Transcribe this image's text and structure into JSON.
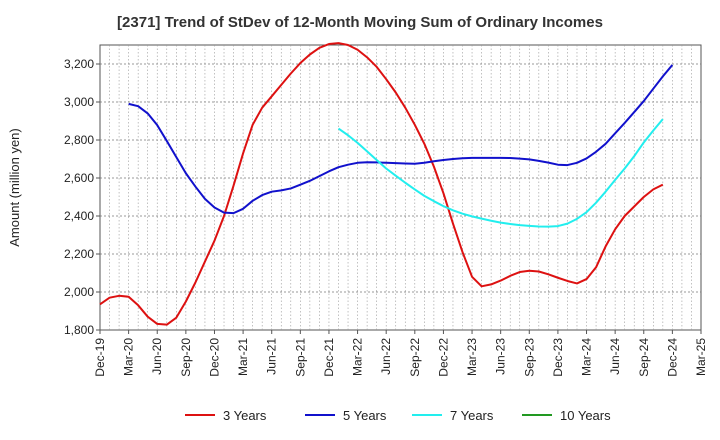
{
  "chart_data": {
    "type": "line",
    "title": "[2371]  Trend of StDev of 12-Month Moving Sum of Ordinary Incomes",
    "ylabel": "Amount (million yen)",
    "xlabel": "",
    "x_start": "Dec-19",
    "months_per_point": 1,
    "ylim": [
      1800,
      3300
    ],
    "yticks": [
      1800,
      2000,
      2200,
      2400,
      2600,
      2800,
      3000,
      3200
    ],
    "ytick_labels": [
      "1,800",
      "2,000",
      "2,200",
      "2,400",
      "2,600",
      "2,800",
      "3,000",
      "3,200"
    ],
    "xtick_labels": [
      "Dec-19",
      "Mar-20",
      "Jun-20",
      "Sep-20",
      "Dec-20",
      "Mar-21",
      "Jun-21",
      "Sep-21",
      "Dec-21",
      "Mar-22",
      "Jun-22",
      "Sep-22",
      "Dec-22",
      "Mar-23",
      "Jun-23",
      "Sep-23",
      "Dec-23",
      "Mar-24",
      "Jun-24",
      "Sep-24",
      "Dec-24",
      "Mar-25"
    ],
    "grid": true,
    "legend_position": "bottom",
    "series": [
      {
        "name": "3 Years",
        "color": "#dd1111",
        "start": "Dec-19",
        "values": [
          1935,
          1970,
          1980,
          1975,
          1930,
          1870,
          1832,
          1828,
          1865,
          1950,
          2050,
          2160,
          2270,
          2400,
          2560,
          2730,
          2880,
          2970,
          3030,
          3090,
          3150,
          3205,
          3250,
          3285,
          3305,
          3310,
          3300,
          3275,
          3235,
          3185,
          3120,
          3050,
          2970,
          2880,
          2780,
          2660,
          2520,
          2360,
          2210,
          2080,
          2030,
          2040,
          2060,
          2085,
          2105,
          2112,
          2108,
          2093,
          2075,
          2058,
          2045,
          2068,
          2130,
          2240,
          2330,
          2400,
          2450,
          2500,
          2540,
          2565
        ]
      },
      {
        "name": "5 Years",
        "color": "#1111cc",
        "start": "Mar-20",
        "values": [
          2990,
          2978,
          2940,
          2878,
          2795,
          2710,
          2625,
          2555,
          2490,
          2445,
          2418,
          2415,
          2438,
          2480,
          2510,
          2528,
          2535,
          2545,
          2565,
          2585,
          2610,
          2635,
          2657,
          2670,
          2680,
          2683,
          2682,
          2680,
          2678,
          2676,
          2675,
          2680,
          2688,
          2695,
          2700,
          2704,
          2706,
          2706,
          2706,
          2706,
          2705,
          2702,
          2698,
          2690,
          2681,
          2670,
          2668,
          2680,
          2703,
          2738,
          2780,
          2835,
          2890,
          2947,
          3005,
          3070,
          3135,
          3195
        ]
      },
      {
        "name": "7 Years",
        "color": "#22eeee",
        "start": "Jan-22",
        "values": [
          2860,
          2825,
          2785,
          2740,
          2695,
          2650,
          2612,
          2575,
          2540,
          2506,
          2478,
          2452,
          2430,
          2412,
          2398,
          2386,
          2375,
          2365,
          2358,
          2352,
          2348,
          2345,
          2344,
          2347,
          2360,
          2385,
          2420,
          2470,
          2528,
          2590,
          2650,
          2715,
          2787,
          2850,
          2910
        ]
      },
      {
        "name": "10 Years",
        "color": "#229922",
        "start": "Dec-24",
        "values": []
      }
    ]
  }
}
